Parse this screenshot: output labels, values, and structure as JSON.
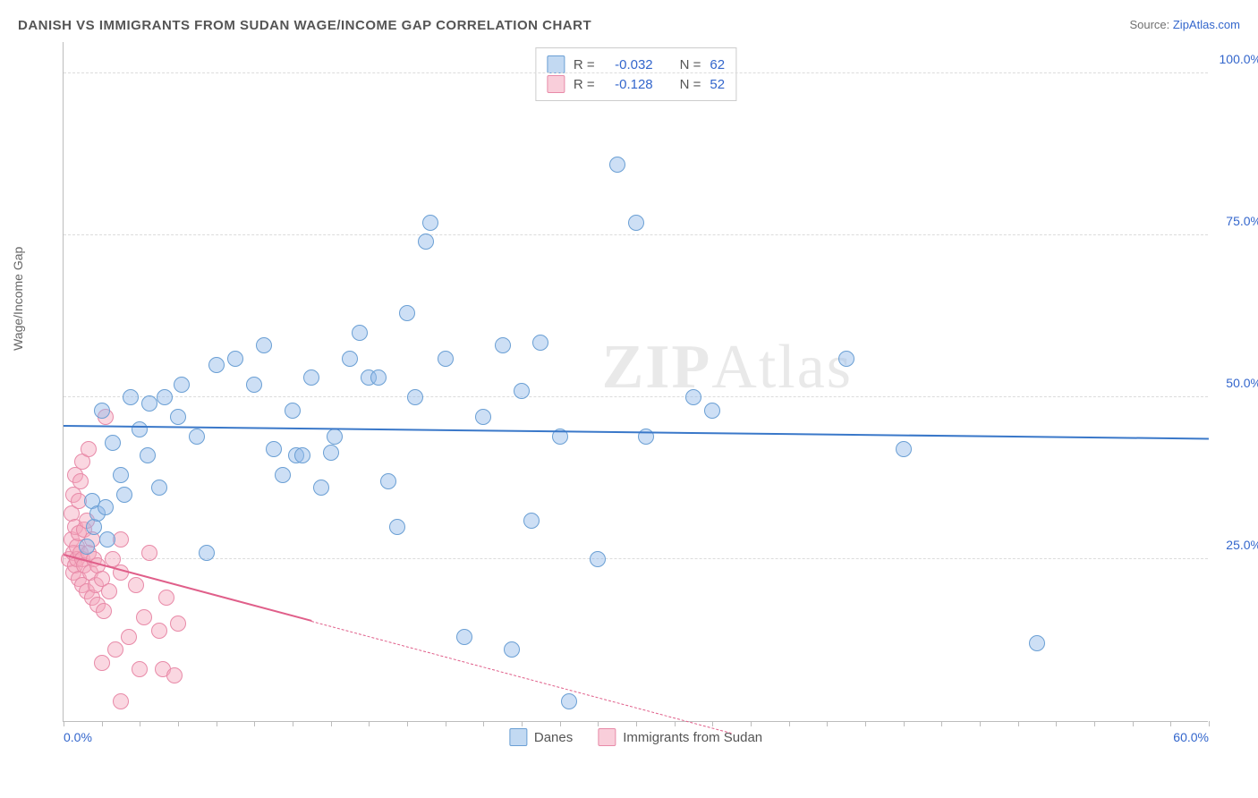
{
  "header": {
    "title": "DANISH VS IMMIGRANTS FROM SUDAN WAGE/INCOME GAP CORRELATION CHART",
    "source_prefix": "Source: ",
    "source_link": "ZipAtlas.com"
  },
  "chart": {
    "type": "scatter",
    "ylabel": "Wage/Income Gap",
    "background_color": "#ffffff",
    "grid_color": "#dcdcdc",
    "axis_color": "#bcbcbc",
    "label_color": "#3366cc",
    "xlim": [
      0,
      60
    ],
    "ylim": [
      0,
      105
    ],
    "xtick_step": 2,
    "xtick_labels": [
      {
        "x": 0,
        "label": "0.0%"
      },
      {
        "x": 60,
        "label": "60.0%"
      }
    ],
    "ytick_labels": [
      {
        "y": 25,
        "label": "25.0%"
      },
      {
        "y": 50,
        "label": "50.0%"
      },
      {
        "y": 75,
        "label": "75.0%"
      },
      {
        "y": 100,
        "label": "100.0%"
      }
    ],
    "marker_radius": 9,
    "watermark": {
      "bold": "ZIP",
      "rest": "Atlas"
    },
    "series": {
      "danes": {
        "label": "Danes",
        "color_fill": "rgba(144,185,232,0.45)",
        "color_stroke": "#6a9fd4",
        "trend": {
          "color": "#3a78c9",
          "x1": 0,
          "y1": 45.5,
          "x2": 60,
          "y2": 43.5,
          "solid_to_x": 60
        },
        "points": [
          [
            1.2,
            27
          ],
          [
            1.5,
            34
          ],
          [
            1.6,
            30
          ],
          [
            1.8,
            32
          ],
          [
            2,
            48
          ],
          [
            2.2,
            33
          ],
          [
            2.3,
            28
          ],
          [
            2.6,
            43
          ],
          [
            3,
            38
          ],
          [
            3.2,
            35
          ],
          [
            3.5,
            50
          ],
          [
            4,
            45
          ],
          [
            4.4,
            41
          ],
          [
            4.5,
            49
          ],
          [
            5,
            36
          ],
          [
            5.3,
            50
          ],
          [
            6,
            47
          ],
          [
            6.2,
            52
          ],
          [
            7,
            44
          ],
          [
            7.5,
            26
          ],
          [
            8,
            55
          ],
          [
            9,
            56
          ],
          [
            10,
            52
          ],
          [
            10.5,
            58
          ],
          [
            11,
            42
          ],
          [
            11.5,
            38
          ],
          [
            12,
            48
          ],
          [
            12.2,
            41
          ],
          [
            12.5,
            41
          ],
          [
            13,
            53
          ],
          [
            13.5,
            36
          ],
          [
            14,
            41.5
          ],
          [
            14.2,
            44
          ],
          [
            15,
            56
          ],
          [
            15.5,
            60
          ],
          [
            16,
            53
          ],
          [
            16.5,
            53
          ],
          [
            17,
            37
          ],
          [
            17.5,
            30
          ],
          [
            18,
            63
          ],
          [
            18.4,
            50
          ],
          [
            19,
            74
          ],
          [
            19.2,
            77
          ],
          [
            20,
            56
          ],
          [
            21,
            13
          ],
          [
            22,
            47
          ],
          [
            23,
            58
          ],
          [
            23.5,
            11
          ],
          [
            24,
            51
          ],
          [
            24.5,
            31
          ],
          [
            25,
            58.5
          ],
          [
            26,
            44
          ],
          [
            26.5,
            3
          ],
          [
            28,
            25
          ],
          [
            29,
            86
          ],
          [
            30,
            77
          ],
          [
            30.5,
            44
          ],
          [
            33,
            50
          ],
          [
            34,
            48
          ],
          [
            41,
            56
          ],
          [
            44,
            42
          ],
          [
            51,
            12
          ]
        ]
      },
      "sudan": {
        "label": "Immigrants from Sudan",
        "color_fill": "rgba(244,166,188,0.45)",
        "color_stroke": "#e88aa8",
        "trend": {
          "color": "#e05f8a",
          "x1": 0,
          "y1": 25.5,
          "x2": 35,
          "y2": -2,
          "solid_to_x": 13
        },
        "points": [
          [
            0.3,
            25
          ],
          [
            0.4,
            28
          ],
          [
            0.4,
            32
          ],
          [
            0.5,
            26
          ],
          [
            0.5,
            23
          ],
          [
            0.5,
            35
          ],
          [
            0.6,
            30
          ],
          [
            0.6,
            24
          ],
          [
            0.6,
            38
          ],
          [
            0.7,
            27
          ],
          [
            0.7,
            25
          ],
          [
            0.8,
            22
          ],
          [
            0.8,
            34
          ],
          [
            0.8,
            29
          ],
          [
            0.9,
            26
          ],
          [
            0.9,
            37
          ],
          [
            1.0,
            25
          ],
          [
            1.0,
            21
          ],
          [
            1.0,
            40
          ],
          [
            1.1,
            29.5
          ],
          [
            1.1,
            24
          ],
          [
            1.2,
            31
          ],
          [
            1.2,
            20
          ],
          [
            1.3,
            26
          ],
          [
            1.3,
            42
          ],
          [
            1.4,
            23
          ],
          [
            1.5,
            28
          ],
          [
            1.5,
            19
          ],
          [
            1.6,
            25
          ],
          [
            1.7,
            21
          ],
          [
            1.8,
            24
          ],
          [
            1.8,
            18
          ],
          [
            2.0,
            9
          ],
          [
            2.0,
            22
          ],
          [
            2.1,
            17
          ],
          [
            2.2,
            47
          ],
          [
            2.4,
            20
          ],
          [
            2.6,
            25
          ],
          [
            2.7,
            11
          ],
          [
            3.0,
            23
          ],
          [
            3.0,
            28
          ],
          [
            3.4,
            13
          ],
          [
            3.8,
            21
          ],
          [
            4.0,
            8
          ],
          [
            4.2,
            16
          ],
          [
            4.5,
            26
          ],
          [
            5.0,
            14
          ],
          [
            5.2,
            8
          ],
          [
            5.4,
            19
          ],
          [
            5.8,
            7
          ],
          [
            6.0,
            15
          ],
          [
            3.0,
            3
          ]
        ]
      }
    },
    "stats_box": {
      "rows": [
        {
          "swatch": "blue",
          "r_label": "R =",
          "r": "-0.032",
          "n_label": "N =",
          "n": "62"
        },
        {
          "swatch": "pink",
          "r_label": "R =",
          "r": "-0.128",
          "n_label": "N =",
          "n": "52"
        }
      ]
    },
    "bottom_legend": [
      {
        "swatch": "blue",
        "label": "Danes"
      },
      {
        "swatch": "pink",
        "label": "Immigrants from Sudan"
      }
    ]
  }
}
